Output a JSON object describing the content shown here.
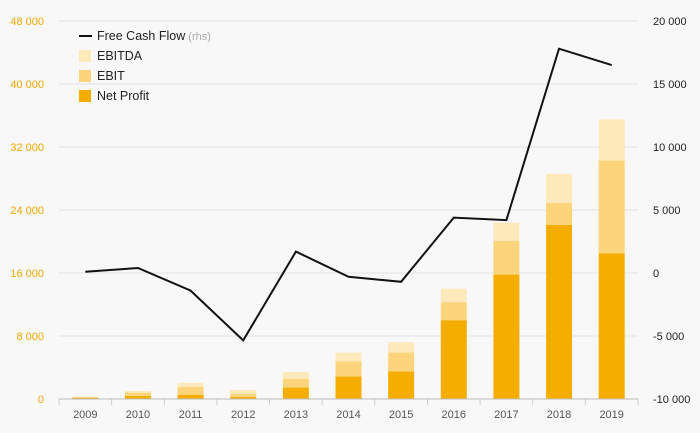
{
  "chart_data": {
    "type": "bar",
    "stacked": true,
    "categories": [
      "2009",
      "2010",
      "2011",
      "2012",
      "2013",
      "2014",
      "2015",
      "2016",
      "2017",
      "2018",
      "2019"
    ],
    "series": [
      {
        "name": "Net Profit",
        "kind": "bar",
        "axis": "left",
        "color": "#f5ae00",
        "values": [
          150,
          400,
          550,
          250,
          1450,
          2850,
          3500,
          10000,
          15800,
          22100,
          18500
        ]
      },
      {
        "name": "EBIT",
        "kind": "bar",
        "axis": "left",
        "color": "#fcd47c",
        "values": [
          100,
          400,
          1000,
          400,
          1100,
          1950,
          2400,
          2300,
          4300,
          2800,
          11800
        ]
      },
      {
        "name": "EBITDA",
        "kind": "bar",
        "axis": "left",
        "color": "#fde9b9",
        "values": [
          50,
          200,
          500,
          500,
          900,
          1100,
          1300,
          1700,
          2300,
          3700,
          5200
        ]
      },
      {
        "name": "Free Cash Flow",
        "kind": "line",
        "axis": "right",
        "color": "#111111",
        "values": [
          100,
          400,
          -1400,
          -5350,
          1700,
          -300,
          -700,
          4400,
          4200,
          17800,
          16500
        ]
      }
    ],
    "legend": {
      "position": "top-left",
      "items": [
        {
          "name": "Free Cash Flow",
          "suffix": "(rhs)",
          "kind": "line",
          "color": "#111111"
        },
        {
          "name": "EBITDA",
          "kind": "bar",
          "color": "#fde9b9"
        },
        {
          "name": "EBIT",
          "kind": "bar",
          "color": "#fcd47c"
        },
        {
          "name": "Net Profit",
          "kind": "bar",
          "color": "#f5ae00"
        }
      ]
    },
    "left_axis": {
      "ylim": [
        0,
        48000
      ],
      "ticks": [
        0,
        8000,
        16000,
        24000,
        32000,
        40000,
        48000
      ],
      "tick_labels": [
        "0",
        "8 000",
        "16 000",
        "24 000",
        "32 000",
        "40 000",
        "48 000"
      ],
      "color": "#f0a800"
    },
    "right_axis": {
      "ylim": [
        -10000,
        20000
      ],
      "ticks": [
        -10000,
        -5000,
        0,
        5000,
        10000,
        15000,
        20000
      ],
      "tick_labels": [
        "-10 000",
        "-5 000",
        "0",
        "5 000",
        "10 000",
        "15 000",
        "20 000"
      ],
      "color": "#222222"
    },
    "title": "",
    "xlabel": "",
    "ylabel": "",
    "grid": "horizontal"
  }
}
